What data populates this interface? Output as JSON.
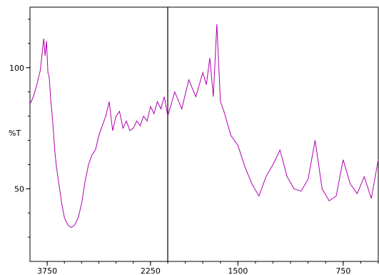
{
  "chart_data": {
    "type": "line",
    "title": "",
    "xlabel": "",
    "ylabel": "%T",
    "x_reversed": true,
    "xlim": [
      4000,
      500
    ],
    "ylim": [
      20,
      125
    ],
    "x_ticks": [
      {
        "value": 3750,
        "label": "3750"
      },
      {
        "value": 2250,
        "label": "2250"
      },
      {
        "value": 1500,
        "label": "1500"
      },
      {
        "value": 750,
        "label": "750"
      }
    ],
    "y_ticks": [
      {
        "value": 100,
        "label": "100"
      },
      {
        "value": 50,
        "label": "50"
      }
    ],
    "divider_at": 2000,
    "grid": false,
    "series_color": "#b000b0",
    "series": [
      {
        "x": [
          4000,
          3950,
          3900,
          3850,
          3800,
          3780,
          3760,
          3740,
          3720,
          3700,
          3680,
          3660,
          3640,
          3620,
          3600,
          3580,
          3560,
          3540,
          3500,
          3450,
          3400,
          3350,
          3300,
          3250,
          3200,
          3150,
          3100,
          3050,
          3000,
          2950,
          2900,
          2850,
          2800,
          2750,
          2700,
          2650,
          2600,
          2550,
          2500,
          2450,
          2400,
          2350,
          2300,
          2250,
          2200,
          2150,
          2100,
          2050,
          2000,
          1950,
          1900,
          1850,
          1800,
          1750,
          1725,
          1700,
          1675,
          1650,
          1625,
          1600,
          1550,
          1500,
          1450,
          1400,
          1350,
          1300,
          1250,
          1200,
          1150,
          1100,
          1050,
          1000,
          950,
          900,
          850,
          800,
          750,
          700,
          650,
          600,
          550,
          500
        ],
        "y": [
          85,
          88,
          93,
          99,
          112,
          105,
          111,
          98,
          96,
          87,
          81,
          74,
          66,
          60,
          56,
          52,
          48,
          44,
          38,
          35,
          34,
          35,
          38,
          44,
          53,
          60,
          64,
          66,
          72,
          76,
          80,
          86,
          74,
          80,
          82,
          75,
          78,
          74,
          75,
          78,
          76,
          80,
          78,
          84,
          81,
          86,
          83,
          88,
          80,
          90,
          83,
          95,
          88,
          98,
          93,
          104,
          88,
          118,
          86,
          82,
          72,
          68,
          59,
          52,
          47,
          55,
          60,
          66,
          55,
          50,
          49,
          54,
          70,
          50,
          45,
          47,
          62,
          52,
          48,
          55,
          46,
          62
        ]
      }
    ]
  }
}
